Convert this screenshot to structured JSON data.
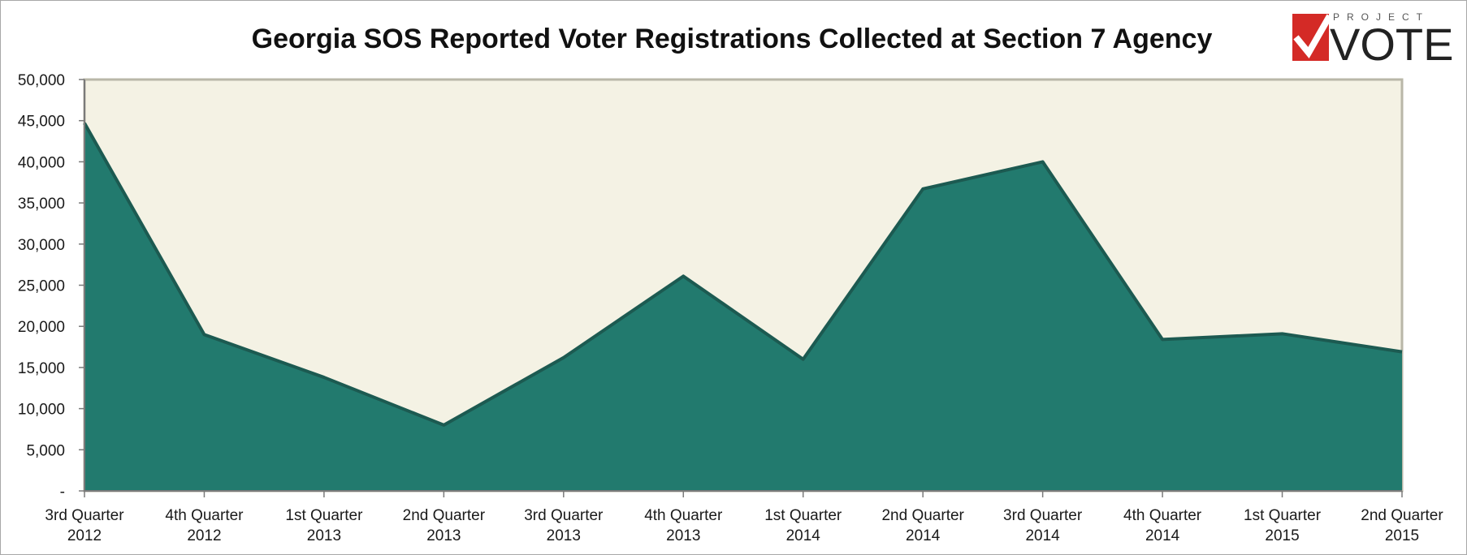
{
  "chart_data": {
    "type": "area",
    "title": "Georgia SOS Reported Voter Registrations Collected at Section 7 Agency",
    "xlabel": "",
    "ylabel": "",
    "categories": [
      [
        "3rd Quarter",
        "2012"
      ],
      [
        "4th Quarter",
        "2012"
      ],
      [
        "1st Quarter",
        "2013"
      ],
      [
        "2nd Quarter",
        "2013"
      ],
      [
        "3rd Quarter",
        "2013"
      ],
      [
        "4th Quarter",
        "2013"
      ],
      [
        "1st Quarter",
        "2014"
      ],
      [
        "2nd Quarter",
        "2014"
      ],
      [
        "3rd Quarter",
        "2014"
      ],
      [
        "4th Quarter",
        "2014"
      ],
      [
        "1st Quarter",
        "2015"
      ],
      [
        "2nd Quarter",
        "2015"
      ]
    ],
    "series": [
      {
        "values": [
          44700,
          19000,
          13800,
          8000,
          16200,
          26100,
          16000,
          36700,
          40000,
          18400,
          19100,
          16900
        ]
      }
    ],
    "ylim": [
      0,
      50000
    ],
    "yticks": [
      0,
      5000,
      10000,
      15000,
      20000,
      25000,
      30000,
      35000,
      40000,
      45000,
      50000
    ],
    "ytick_labels": [
      "-",
      "5,000",
      "10,000",
      "15,000",
      "20,000",
      "25,000",
      "30,000",
      "35,000",
      "40,000",
      "45,000",
      "50,000"
    ],
    "grid": false,
    "legend": "none",
    "colors": {
      "area_fill": "#227a6e",
      "area_line": "#1c5a51",
      "plot_background": "#f4f2e4",
      "plot_border": "#b9b7a8"
    }
  },
  "logo": {
    "top_text": "PROJECT",
    "main_text": "VOTE",
    "icon": "checkmark-icon",
    "accent": "#d42a26"
  }
}
